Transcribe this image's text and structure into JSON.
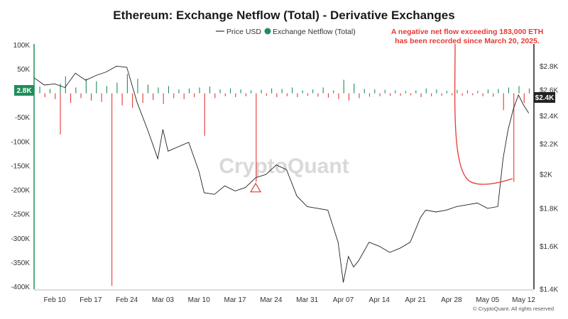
{
  "chart_data": {
    "type": "bar",
    "title": "Ethereum: Exchange Netflow (Total) - Derivative Exchanges",
    "legend": [
      {
        "name": "Price USD",
        "color": "#333333",
        "marker": "line"
      },
      {
        "name": "Exchange Netflow (Total)",
        "color": "#1e8e5a",
        "marker": "dot"
      }
    ],
    "x_ticks": [
      "Feb 10",
      "Feb 17",
      "Feb 24",
      "Mar 03",
      "Mar 10",
      "Mar 17",
      "Mar 24",
      "Mar 31",
      "Apr 07",
      "Apr 14",
      "Apr 21",
      "Apr 28",
      "May 05",
      "May 12"
    ],
    "x_range": [
      "2025-02-06",
      "2025-05-14"
    ],
    "left_axis": {
      "label": "Exchange Netflow (Total)",
      "ticks": [
        "100K",
        "50K",
        "0",
        "-50K",
        "-100K",
        "-150K",
        "-200K",
        "-250K",
        "-300K",
        "-350K",
        "-400K"
      ],
      "range": [
        -405000,
        102000
      ],
      "current_badge": "2.8K"
    },
    "right_axis": {
      "label": "Price USD",
      "scale": "log",
      "ticks": [
        "$2.8K",
        "$2.6K",
        "$2.4K",
        "$2.2K",
        "$2K",
        "$1.8K",
        "$1.6K",
        "$1.4K"
      ],
      "range": [
        1400,
        3000
      ],
      "current_badge": "$2.4K"
    },
    "series": [
      {
        "name": "Price USD",
        "type": "line",
        "color": "#222222",
        "points": [
          [
            "2025-02-06",
            2700
          ],
          [
            "2025-02-08",
            2640
          ],
          [
            "2025-02-10",
            2650
          ],
          [
            "2025-02-12",
            2620
          ],
          [
            "2025-02-14",
            2740
          ],
          [
            "2025-02-16",
            2680
          ],
          [
            "2025-02-18",
            2720
          ],
          [
            "2025-02-20",
            2750
          ],
          [
            "2025-02-22",
            2800
          ],
          [
            "2025-02-24",
            2790
          ],
          [
            "2025-02-26",
            2500
          ],
          [
            "2025-02-28",
            2300
          ],
          [
            "2025-03-01",
            2200
          ],
          [
            "2025-03-02",
            2100
          ],
          [
            "2025-03-03",
            2300
          ],
          [
            "2025-03-04",
            2150
          ],
          [
            "2025-03-06",
            2180
          ],
          [
            "2025-03-08",
            2210
          ],
          [
            "2025-03-10",
            2020
          ],
          [
            "2025-03-11",
            1890
          ],
          [
            "2025-03-13",
            1880
          ],
          [
            "2025-03-15",
            1930
          ],
          [
            "2025-03-17",
            1900
          ],
          [
            "2025-03-19",
            1920
          ],
          [
            "2025-03-21",
            1980
          ],
          [
            "2025-03-23",
            2000
          ],
          [
            "2025-03-25",
            2060
          ],
          [
            "2025-03-27",
            2030
          ],
          [
            "2025-03-29",
            1870
          ],
          [
            "2025-03-31",
            1810
          ],
          [
            "2025-04-02",
            1800
          ],
          [
            "2025-04-04",
            1790
          ],
          [
            "2025-04-06",
            1620
          ],
          [
            "2025-04-07",
            1430
          ],
          [
            "2025-04-08",
            1550
          ],
          [
            "2025-04-09",
            1500
          ],
          [
            "2025-04-10",
            1530
          ],
          [
            "2025-04-12",
            1620
          ],
          [
            "2025-04-14",
            1600
          ],
          [
            "2025-04-16",
            1570
          ],
          [
            "2025-04-18",
            1590
          ],
          [
            "2025-04-20",
            1620
          ],
          [
            "2025-04-22",
            1750
          ],
          [
            "2025-04-23",
            1790
          ],
          [
            "2025-04-25",
            1780
          ],
          [
            "2025-04-27",
            1790
          ],
          [
            "2025-04-29",
            1810
          ],
          [
            "2025-05-01",
            1820
          ],
          [
            "2025-05-03",
            1830
          ],
          [
            "2025-05-05",
            1800
          ],
          [
            "2025-05-07",
            1810
          ],
          [
            "2025-05-08",
            2100
          ],
          [
            "2025-05-09",
            2300
          ],
          [
            "2025-05-10",
            2450
          ],
          [
            "2025-05-11",
            2560
          ],
          [
            "2025-05-12",
            2480
          ],
          [
            "2025-05-13",
            2420
          ]
        ]
      },
      {
        "name": "Exchange Netflow (Total)",
        "type": "bar",
        "positive_color": "#1e8e5a",
        "negative_color": "#e53935",
        "points": [
          [
            "2025-02-07",
            14000
          ],
          [
            "2025-02-08",
            -8000
          ],
          [
            "2025-02-09",
            9000
          ],
          [
            "2025-02-10",
            -12000
          ],
          [
            "2025-02-11",
            20000
          ],
          [
            "2025-02-11",
            -85000
          ],
          [
            "2025-02-12",
            35000
          ],
          [
            "2025-02-13",
            -20000
          ],
          [
            "2025-02-14",
            12000
          ],
          [
            "2025-02-15",
            -10000
          ],
          [
            "2025-02-16",
            30000
          ],
          [
            "2025-02-17",
            -15000
          ],
          [
            "2025-02-18",
            25000
          ],
          [
            "2025-02-19",
            -18000
          ],
          [
            "2025-02-20",
            15000
          ],
          [
            "2025-02-21",
            -398000
          ],
          [
            "2025-02-22",
            22000
          ],
          [
            "2025-02-23",
            -25000
          ],
          [
            "2025-02-24",
            40000
          ],
          [
            "2025-02-25",
            -30000
          ],
          [
            "2025-02-26",
            30000
          ],
          [
            "2025-02-27",
            -20000
          ],
          [
            "2025-02-28",
            18000
          ],
          [
            "2025-03-01",
            -14000
          ],
          [
            "2025-03-02",
            12000
          ],
          [
            "2025-03-03",
            -22000
          ],
          [
            "2025-03-04",
            15000
          ],
          [
            "2025-03-05",
            -10000
          ],
          [
            "2025-03-06",
            8000
          ],
          [
            "2025-03-07",
            -12000
          ],
          [
            "2025-03-08",
            10000
          ],
          [
            "2025-03-09",
            -8000
          ],
          [
            "2025-03-10",
            12000
          ],
          [
            "2025-03-11",
            -88000
          ],
          [
            "2025-03-12",
            14000
          ],
          [
            "2025-03-13",
            -10000
          ],
          [
            "2025-03-14",
            8000
          ],
          [
            "2025-03-15",
            -6000
          ],
          [
            "2025-03-16",
            10000
          ],
          [
            "2025-03-17",
            -8000
          ],
          [
            "2025-03-18",
            8000
          ],
          [
            "2025-03-19",
            -6000
          ],
          [
            "2025-03-20",
            6000
          ],
          [
            "2025-03-21",
            -183000
          ],
          [
            "2025-03-22",
            7000
          ],
          [
            "2025-03-23",
            -5000
          ],
          [
            "2025-03-24",
            10000
          ],
          [
            "2025-03-25",
            -8000
          ],
          [
            "2025-03-26",
            9000
          ],
          [
            "2025-03-27",
            -6000
          ],
          [
            "2025-03-28",
            12000
          ],
          [
            "2025-03-29",
            -8000
          ],
          [
            "2025-03-30",
            6000
          ],
          [
            "2025-03-31",
            -5000
          ],
          [
            "2025-04-01",
            8000
          ],
          [
            "2025-04-02",
            -7000
          ],
          [
            "2025-04-03",
            12000
          ],
          [
            "2025-04-04",
            -9000
          ],
          [
            "2025-04-05",
            6000
          ],
          [
            "2025-04-06",
            -12000
          ],
          [
            "2025-04-07",
            28000
          ],
          [
            "2025-04-08",
            -15000
          ],
          [
            "2025-04-09",
            20000
          ],
          [
            "2025-04-10",
            -10000
          ],
          [
            "2025-04-11",
            9000
          ],
          [
            "2025-04-12",
            -7000
          ],
          [
            "2025-04-13",
            8000
          ],
          [
            "2025-04-14",
            -6000
          ],
          [
            "2025-04-15",
            7000
          ],
          [
            "2025-04-16",
            -5000
          ],
          [
            "2025-04-17",
            6000
          ],
          [
            "2025-04-18",
            -5000
          ],
          [
            "2025-04-19",
            5000
          ],
          [
            "2025-04-20",
            -4000
          ],
          [
            "2025-04-21",
            6000
          ],
          [
            "2025-04-22",
            -8000
          ],
          [
            "2025-04-23",
            10000
          ],
          [
            "2025-04-24",
            -6000
          ],
          [
            "2025-04-25",
            8000
          ],
          [
            "2025-04-26",
            -5000
          ],
          [
            "2025-04-27",
            5000
          ],
          [
            "2025-04-28",
            -4000
          ],
          [
            "2025-04-29",
            7000
          ],
          [
            "2025-04-30",
            -5000
          ],
          [
            "2025-05-01",
            6000
          ],
          [
            "2025-05-02",
            -4000
          ],
          [
            "2025-05-03",
            5000
          ],
          [
            "2025-05-04",
            -6000
          ],
          [
            "2025-05-05",
            8000
          ],
          [
            "2025-05-06",
            -7000
          ],
          [
            "2025-05-07",
            9000
          ],
          [
            "2025-05-08",
            -35000
          ],
          [
            "2025-05-09",
            12000
          ],
          [
            "2025-05-10",
            -183000
          ],
          [
            "2025-05-11",
            15000
          ],
          [
            "2025-05-12",
            -20000
          ],
          [
            "2025-05-13",
            10000
          ]
        ]
      }
    ],
    "annotation": {
      "lines": [
        "A negative net flow exceeding 183,000 ETH",
        "has been recorded since March 20, 2025."
      ],
      "color": "#e53935",
      "marker": "triangle",
      "marker_at": [
        "2025-03-21",
        -195000
      ]
    },
    "watermark": "CryptoQuant",
    "footer": "© CryptoQuant. All rights reserved"
  }
}
